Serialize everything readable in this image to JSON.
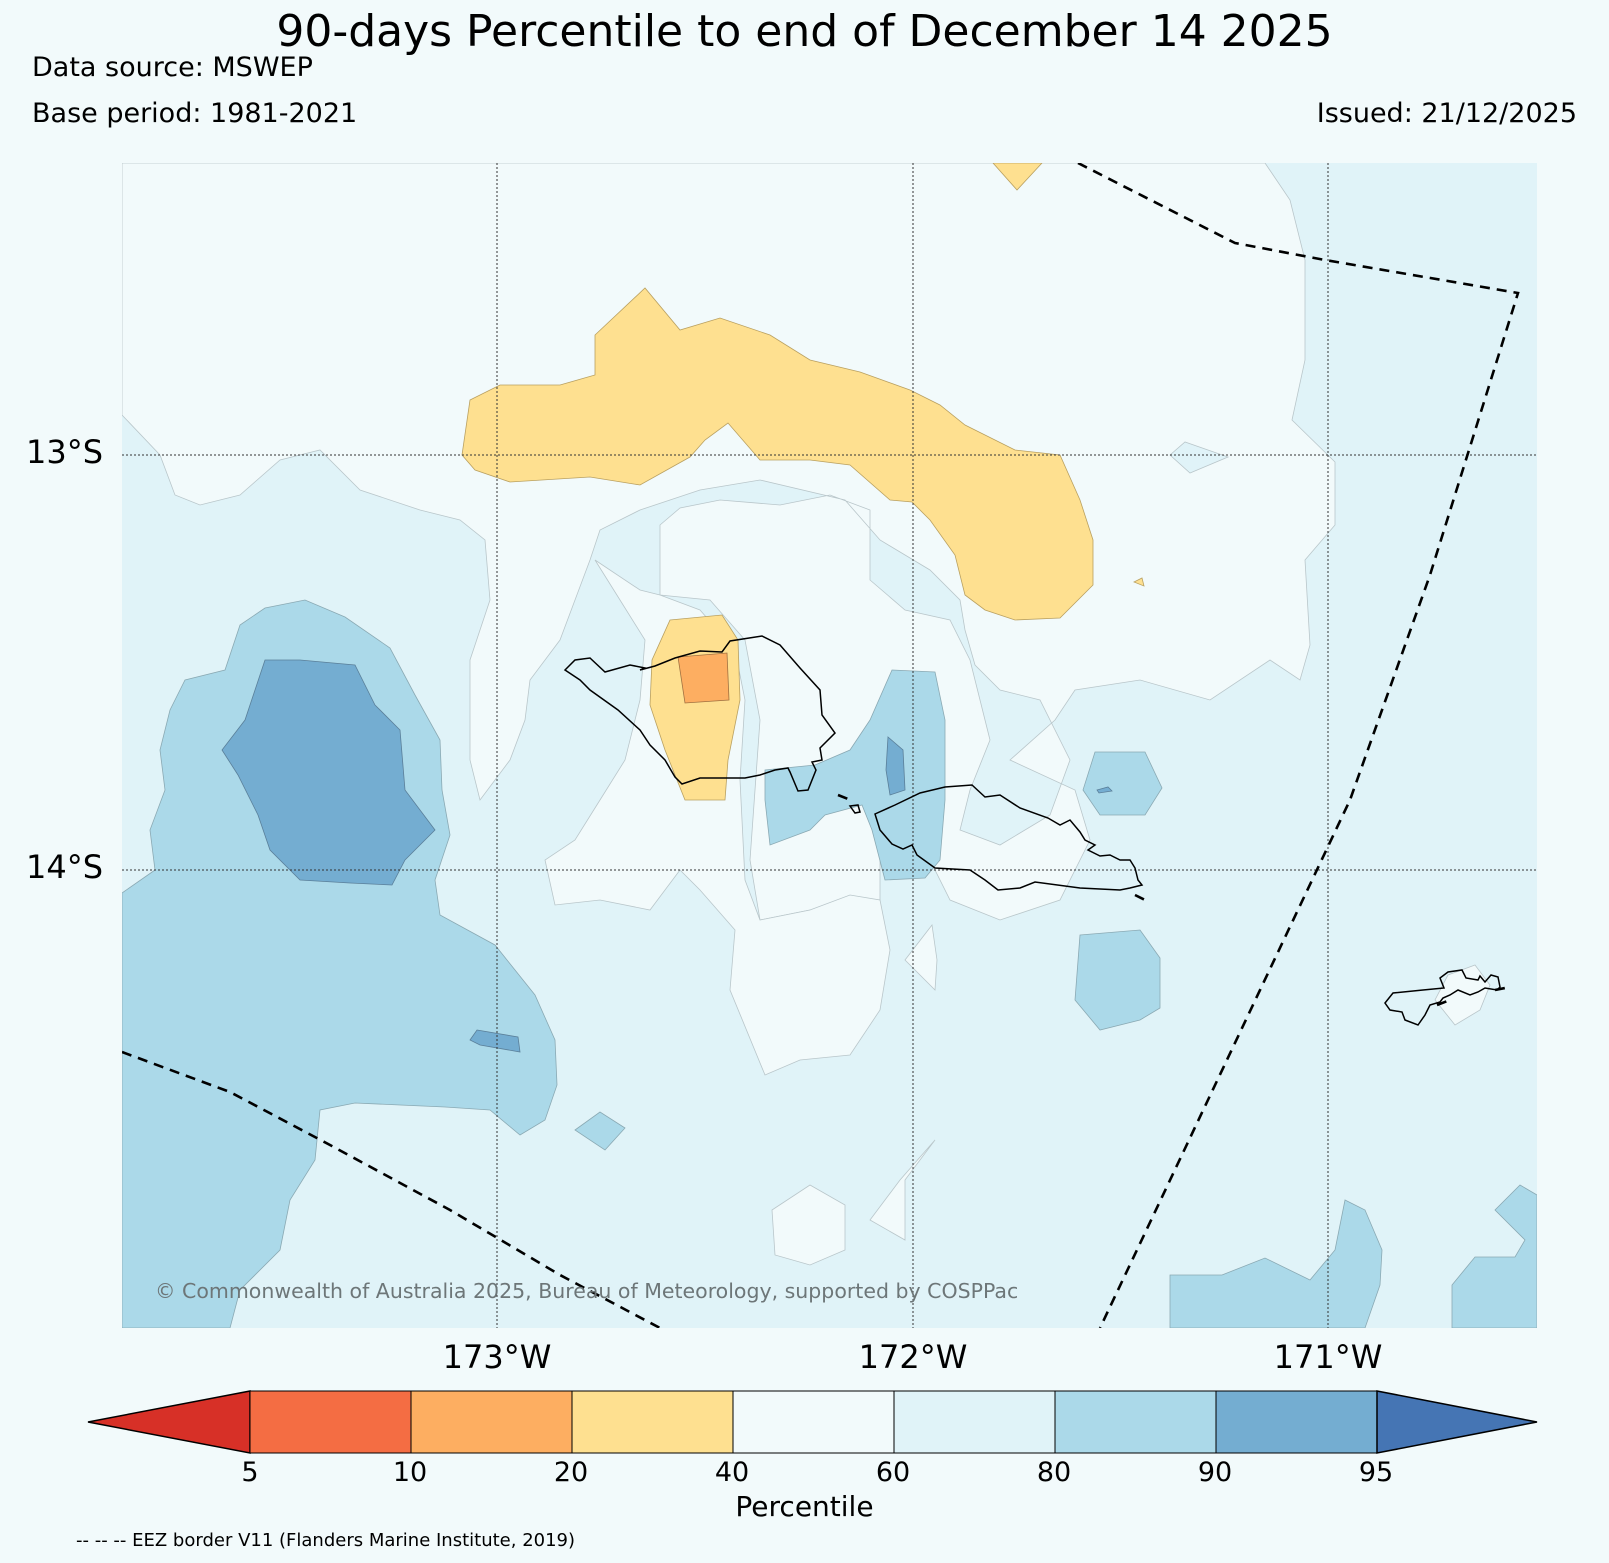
{
  "header": {
    "title": "90-days Percentile to end of December 14 2025",
    "data_source": "Data source: MSWEP",
    "base_period": "Base period: 1981-2021",
    "issued": "Issued: 21/12/2025"
  },
  "axes": {
    "lat_labels": [
      "13°S",
      "14°S"
    ],
    "lon_labels": [
      "173°W",
      "172°W",
      "171°W"
    ]
  },
  "colorbar": {
    "title": "Percentile",
    "ticks": [
      "5",
      "10",
      "20",
      "40",
      "60",
      "80",
      "90",
      "95"
    ],
    "colors": [
      "#d73027",
      "#f46d43",
      "#fdae61",
      "#fee090",
      "#f2fafb",
      "#e0f3f8",
      "#abd9e9",
      "#74add1",
      "#4575b4"
    ]
  },
  "copyright": "© Commonwealth of Australia 2025, Bureau of Meteorology, supported by COSPPac",
  "footnote": "-- -- -- EEZ border V11 (Flanders Marine Institute, 2019)"
}
